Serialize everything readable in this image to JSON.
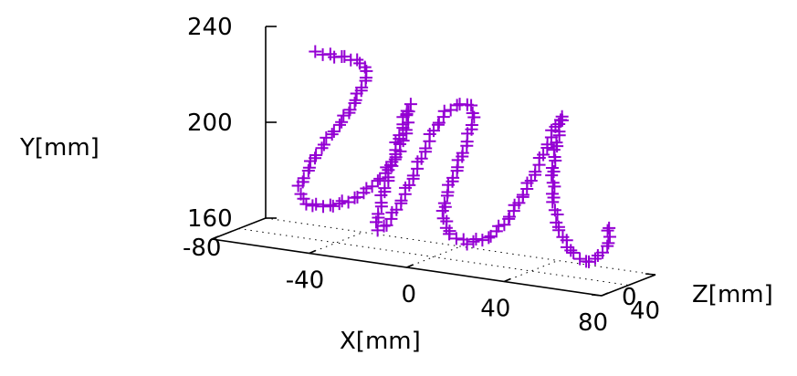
{
  "chart_data": {
    "type": "scatter",
    "plot_style": "3d",
    "marker": "plus",
    "marker_color": "#9400D3",
    "grid": true,
    "title": "",
    "xlabel": "X[mm]",
    "ylabel": "Y[mm]",
    "zlabel": "Z[mm]",
    "xlim": [
      -80,
      80
    ],
    "ylim": [
      160,
      240
    ],
    "zlim": [
      0,
      40
    ],
    "x_ticks": [
      "-80",
      "-40",
      "0",
      "40",
      "80"
    ],
    "y_ticks": [
      "160",
      "200",
      "240"
    ],
    "z_ticks": [
      "0",
      "40"
    ],
    "stroke_path": [
      [
        -48,
        238
      ],
      [
        -38,
        238
      ],
      [
        -30,
        237
      ],
      [
        -27,
        233
      ],
      [
        -30,
        225
      ],
      [
        -35,
        215
      ],
      [
        -42,
        205
      ],
      [
        -48,
        196
      ],
      [
        -52,
        188
      ],
      [
        -55,
        181
      ],
      [
        -54,
        176
      ],
      [
        -50,
        174
      ],
      [
        -43,
        175
      ],
      [
        -35,
        178
      ],
      [
        -27,
        184
      ],
      [
        -20,
        192
      ],
      [
        -14,
        202
      ],
      [
        -11,
        212
      ],
      [
        -10,
        222
      ],
      [
        -12,
        216
      ],
      [
        -15,
        205
      ],
      [
        -18,
        193
      ],
      [
        -21,
        182
      ],
      [
        -23,
        173
      ],
      [
        -23,
        168
      ],
      [
        -19,
        171
      ],
      [
        -14,
        180
      ],
      [
        -9,
        191
      ],
      [
        -4,
        203
      ],
      [
        0,
        213
      ],
      [
        5,
        221
      ],
      [
        11,
        226
      ],
      [
        16,
        225
      ],
      [
        16,
        218
      ],
      [
        13,
        208
      ],
      [
        9,
        197
      ],
      [
        5,
        186
      ],
      [
        4,
        177
      ],
      [
        7,
        170
      ],
      [
        14,
        168
      ],
      [
        22,
        171
      ],
      [
        29,
        178
      ],
      [
        35,
        188
      ],
      [
        41,
        200
      ],
      [
        46,
        212
      ],
      [
        50,
        222
      ],
      [
        53,
        227
      ],
      [
        51,
        218
      ],
      [
        49,
        205
      ],
      [
        49,
        192
      ],
      [
        51,
        180
      ],
      [
        56,
        171
      ],
      [
        62,
        167
      ],
      [
        68,
        170
      ],
      [
        72,
        177
      ],
      [
        72,
        183
      ]
    ],
    "stroke_z": 20
  }
}
